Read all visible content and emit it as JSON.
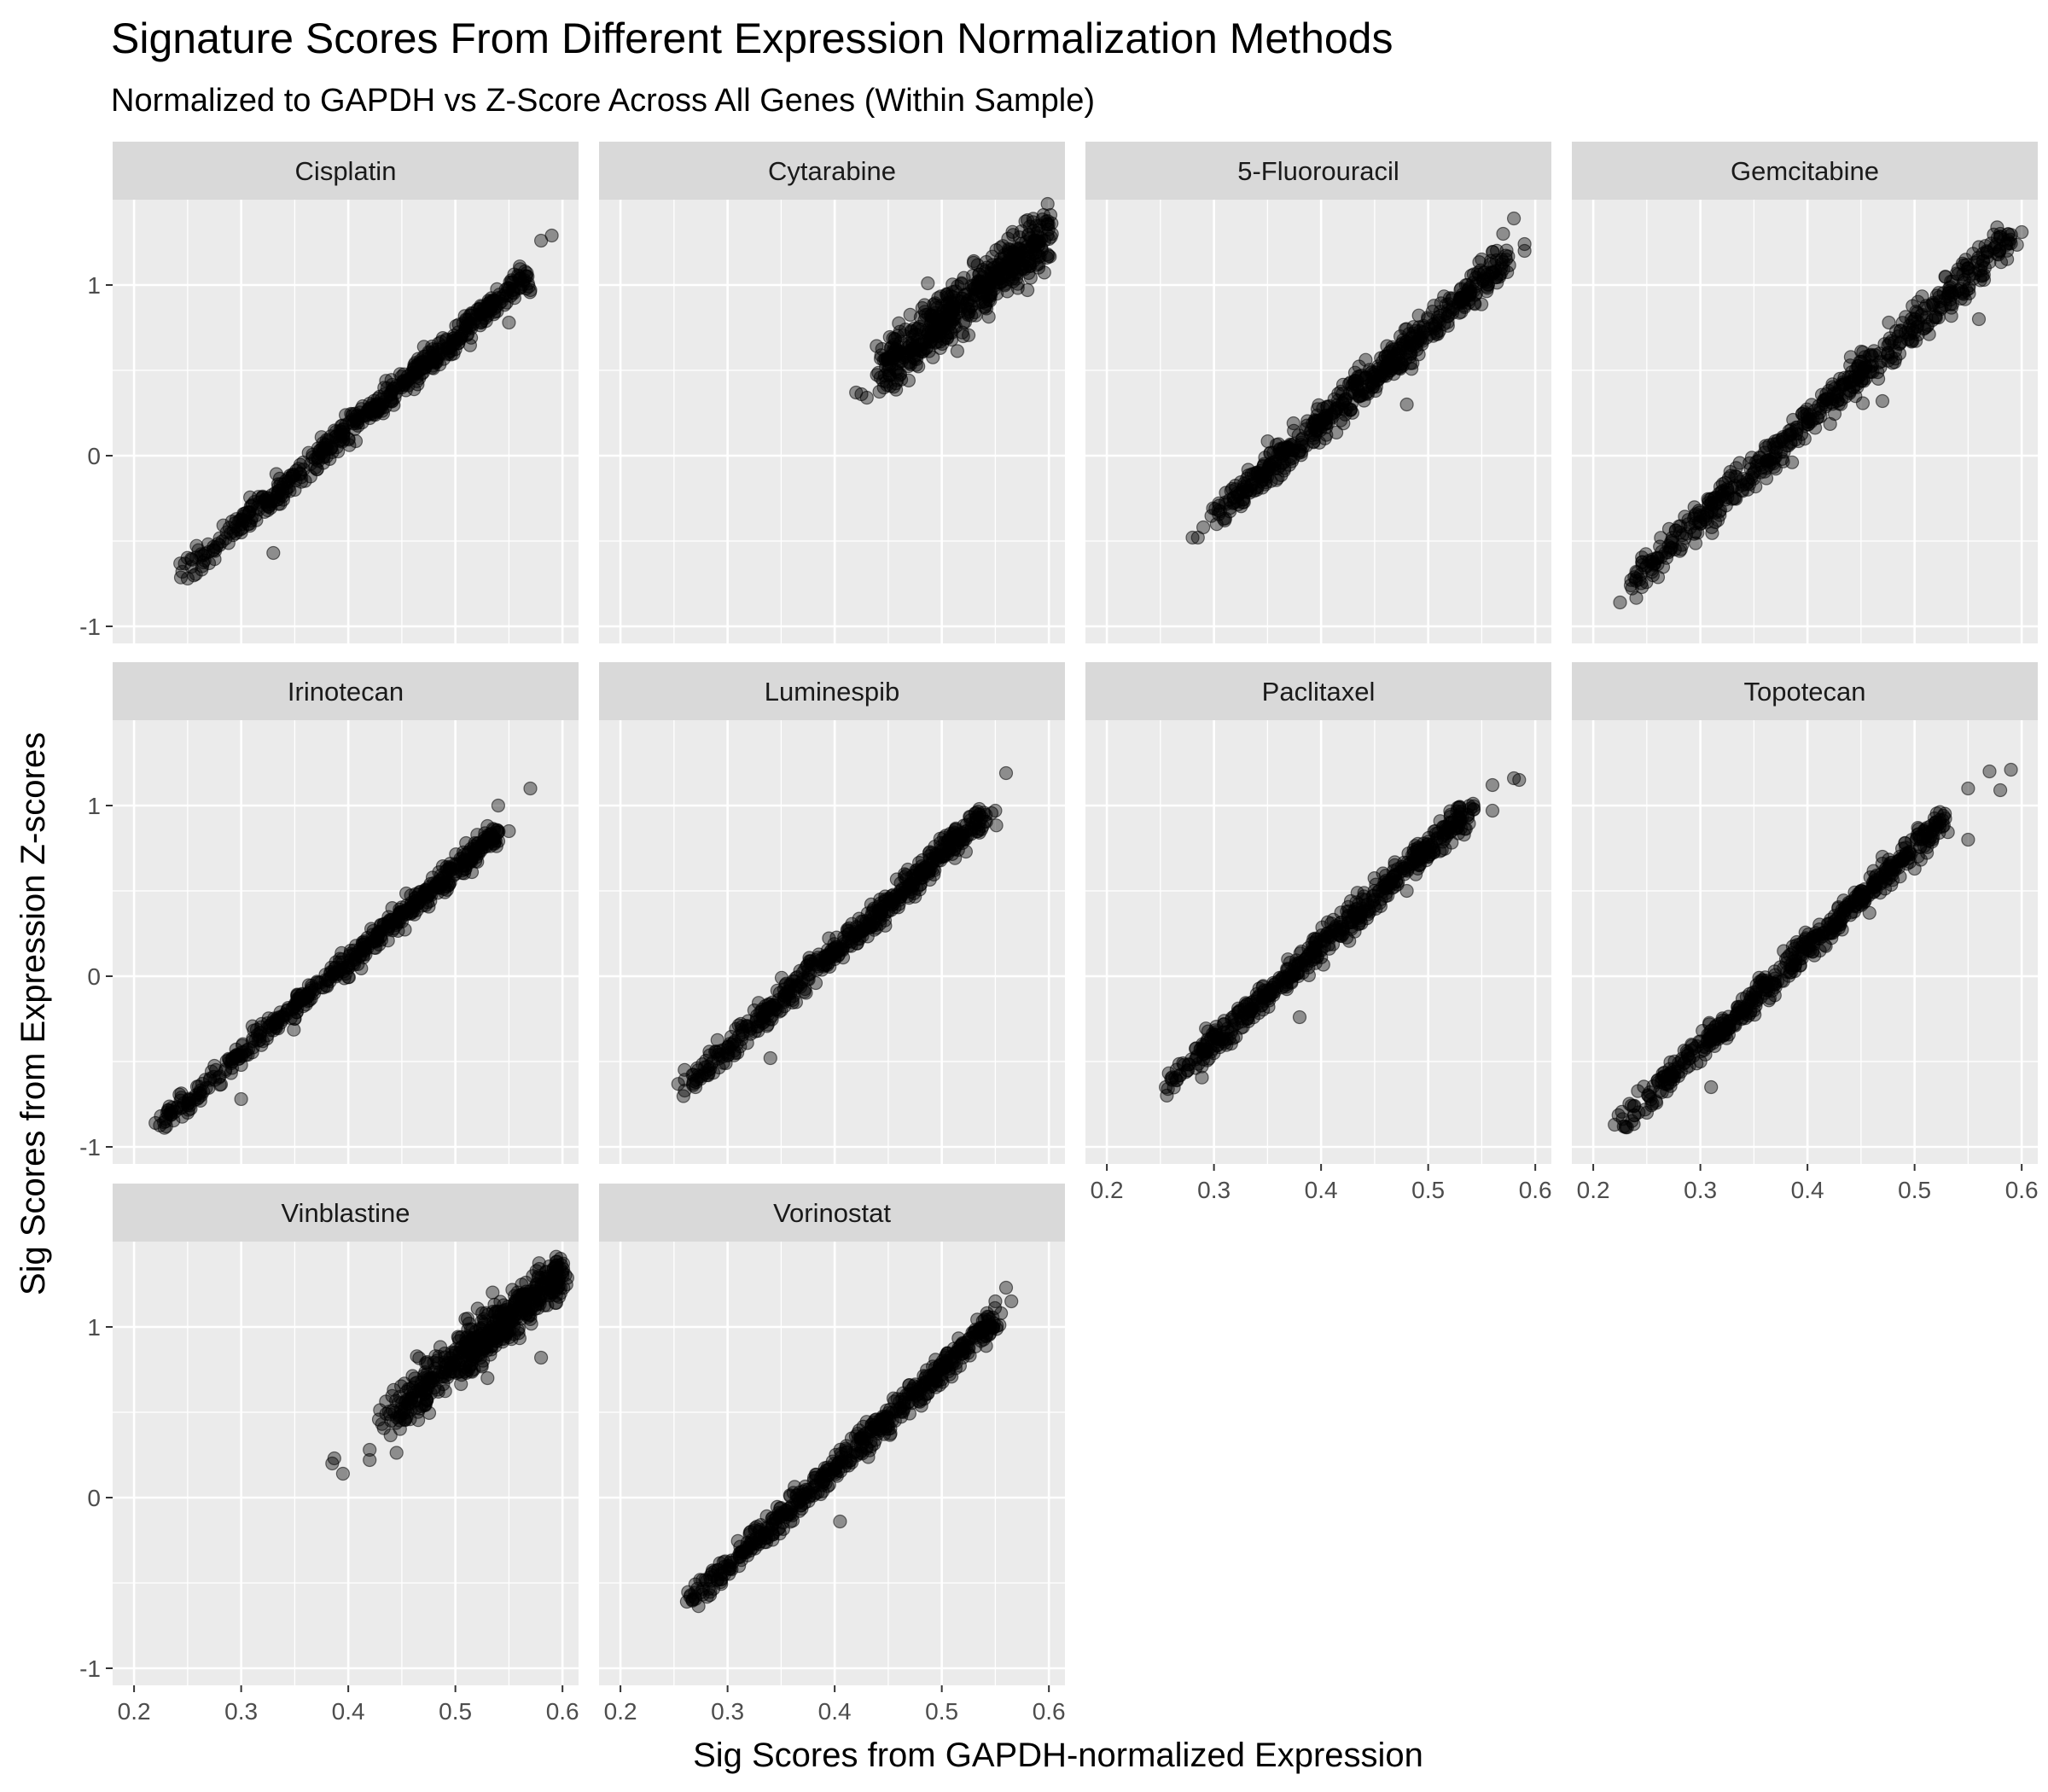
{
  "chart_data": {
    "type": "scatter",
    "title": "Signature Scores From Different Expression Normalization Methods",
    "subtitle": "Normalized to GAPDH vs Z-Score Across All Genes (Within Sample)",
    "xlabel": "Sig Scores from GAPDH-normalized Expression",
    "ylabel": "Sig Scores from Expression Z-scores",
    "xlim": [
      0.18,
      0.615
    ],
    "ylim": [
      -1.1,
      1.5
    ],
    "x_ticks": [
      0.2,
      0.3,
      0.4,
      0.5,
      0.6
    ],
    "x_tick_labels": [
      "0.2",
      "0.3",
      "0.4",
      "0.5",
      "0.6"
    ],
    "y_ticks": [
      -1,
      0,
      1
    ],
    "y_tick_labels": [
      "-1",
      "0",
      "1"
    ],
    "grid": true,
    "facet_layout": {
      "ncol": 4,
      "nrow": 3
    },
    "point_color": "#000000",
    "point_alpha": 0.4,
    "panel_background": "#ebebeb",
    "strip_background": "#d9d9d9",
    "panels": [
      {
        "name": "Cisplatin",
        "trend": {
          "x_range": [
            0.245,
            0.565
          ],
          "y_at_start": -0.7,
          "y_at_end": 1.05,
          "spread": 0.035
        },
        "points": [
          [
            0.245,
            -0.68
          ],
          [
            0.25,
            -0.72
          ],
          [
            0.27,
            -0.63
          ],
          [
            0.3,
            -0.45
          ],
          [
            0.33,
            -0.57
          ],
          [
            0.35,
            -0.2
          ],
          [
            0.4,
            0.1
          ],
          [
            0.42,
            0.22
          ],
          [
            0.45,
            0.4
          ],
          [
            0.5,
            0.68
          ],
          [
            0.53,
            0.85
          ],
          [
            0.55,
            0.98
          ],
          [
            0.55,
            0.78
          ],
          [
            0.565,
            1.08
          ],
          [
            0.57,
            0.97
          ],
          [
            0.58,
            1.26
          ],
          [
            0.59,
            1.29
          ]
        ]
      },
      {
        "name": "Cytarabine",
        "trend": {
          "x_range": [
            0.44,
            0.6
          ],
          "y_at_start": 0.48,
          "y_at_end": 1.3,
          "spread": 0.08
        },
        "points": [
          [
            0.42,
            0.37
          ],
          [
            0.425,
            0.36
          ],
          [
            0.43,
            0.34
          ],
          [
            0.45,
            0.5
          ],
          [
            0.47,
            0.55
          ],
          [
            0.5,
            0.8
          ],
          [
            0.52,
            0.7
          ],
          [
            0.55,
            1.0
          ],
          [
            0.58,
            0.97
          ],
          [
            0.58,
            1.38
          ],
          [
            0.595,
            1.41
          ],
          [
            0.6,
            1.27
          ]
        ]
      },
      {
        "name": "5-Fluorouracil",
        "trend": {
          "x_range": [
            0.3,
            0.575
          ],
          "y_at_start": -0.35,
          "y_at_end": 1.15,
          "spread": 0.05
        },
        "points": [
          [
            0.28,
            -0.48
          ],
          [
            0.285,
            -0.48
          ],
          [
            0.29,
            -0.42
          ],
          [
            0.31,
            -0.38
          ],
          [
            0.34,
            -0.2
          ],
          [
            0.4,
            0.2
          ],
          [
            0.45,
            0.45
          ],
          [
            0.48,
            0.3
          ],
          [
            0.5,
            0.8
          ],
          [
            0.53,
            0.92
          ],
          [
            0.55,
            1.15
          ],
          [
            0.57,
            1.3
          ],
          [
            0.58,
            1.39
          ],
          [
            0.59,
            1.24
          ],
          [
            0.59,
            1.2
          ]
        ]
      },
      {
        "name": "Gemcitabine",
        "trend": {
          "x_range": [
            0.235,
            0.59
          ],
          "y_at_start": -0.75,
          "y_at_end": 1.28,
          "spread": 0.05
        },
        "points": [
          [
            0.225,
            -0.86
          ],
          [
            0.235,
            -0.76
          ],
          [
            0.24,
            -0.72
          ],
          [
            0.3,
            -0.4
          ],
          [
            0.35,
            -0.1
          ],
          [
            0.4,
            0.2
          ],
          [
            0.42,
            0.38
          ],
          [
            0.45,
            0.55
          ],
          [
            0.47,
            0.32
          ],
          [
            0.5,
            0.8
          ],
          [
            0.55,
            1.1
          ],
          [
            0.56,
            0.8
          ],
          [
            0.58,
            1.3
          ],
          [
            0.6,
            1.31
          ]
        ]
      },
      {
        "name": "Irinotecan",
        "trend": {
          "x_range": [
            0.225,
            0.54
          ],
          "y_at_start": -0.86,
          "y_at_end": 0.84,
          "spread": 0.03
        },
        "points": [
          [
            0.22,
            -0.86
          ],
          [
            0.225,
            -0.82
          ],
          [
            0.23,
            -0.88
          ],
          [
            0.25,
            -0.8
          ],
          [
            0.3,
            -0.52
          ],
          [
            0.3,
            -0.72
          ],
          [
            0.35,
            -0.25
          ],
          [
            0.4,
            0.05
          ],
          [
            0.45,
            0.32
          ],
          [
            0.5,
            0.6
          ],
          [
            0.51,
            0.78
          ],
          [
            0.53,
            0.88
          ],
          [
            0.54,
            1.0
          ],
          [
            0.55,
            0.85
          ],
          [
            0.57,
            1.1
          ]
        ]
      },
      {
        "name": "Luminespib",
        "trend": {
          "x_range": [
            0.26,
            0.54
          ],
          "y_at_start": -0.65,
          "y_at_end": 0.94,
          "spread": 0.035
        },
        "points": [
          [
            0.26,
            -0.67
          ],
          [
            0.27,
            -0.65
          ],
          [
            0.3,
            -0.45
          ],
          [
            0.34,
            -0.48
          ],
          [
            0.35,
            -0.2
          ],
          [
            0.4,
            0.1
          ],
          [
            0.45,
            0.38
          ],
          [
            0.5,
            0.7
          ],
          [
            0.52,
            0.8
          ],
          [
            0.535,
            0.98
          ],
          [
            0.55,
            0.97
          ],
          [
            0.56,
            1.19
          ]
        ]
      },
      {
        "name": "Paclitaxel",
        "trend": {
          "x_range": [
            0.26,
            0.54
          ],
          "y_at_start": -0.62,
          "y_at_end": 0.98,
          "spread": 0.04
        },
        "points": [
          [
            0.255,
            -0.65
          ],
          [
            0.26,
            -0.6
          ],
          [
            0.3,
            -0.35
          ],
          [
            0.35,
            -0.1
          ],
          [
            0.38,
            -0.24
          ],
          [
            0.4,
            0.15
          ],
          [
            0.45,
            0.45
          ],
          [
            0.48,
            0.5
          ],
          [
            0.5,
            0.7
          ],
          [
            0.52,
            0.9
          ],
          [
            0.56,
            1.12
          ],
          [
            0.56,
            0.97
          ],
          [
            0.58,
            1.16
          ],
          [
            0.585,
            1.15
          ]
        ]
      },
      {
        "name": "Topotecan",
        "trend": {
          "x_range": [
            0.225,
            0.53
          ],
          "y_at_start": -0.86,
          "y_at_end": 0.93,
          "spread": 0.035
        },
        "points": [
          [
            0.22,
            -0.87
          ],
          [
            0.23,
            -0.88
          ],
          [
            0.25,
            -0.8
          ],
          [
            0.3,
            -0.5
          ],
          [
            0.31,
            -0.65
          ],
          [
            0.35,
            -0.2
          ],
          [
            0.38,
            0.1
          ],
          [
            0.39,
            0.2
          ],
          [
            0.45,
            0.5
          ],
          [
            0.47,
            0.7
          ],
          [
            0.5,
            0.63
          ],
          [
            0.52,
            0.9
          ],
          [
            0.55,
            0.8
          ],
          [
            0.55,
            1.1
          ],
          [
            0.57,
            1.2
          ],
          [
            0.58,
            1.09
          ],
          [
            0.59,
            1.21
          ]
        ]
      },
      {
        "name": "Vinblastine",
        "trend": {
          "x_range": [
            0.43,
            0.6
          ],
          "y_at_start": 0.42,
          "y_at_end": 1.32,
          "spread": 0.07
        },
        "points": [
          [
            0.385,
            0.2
          ],
          [
            0.387,
            0.23
          ],
          [
            0.395,
            0.14
          ],
          [
            0.42,
            0.28
          ],
          [
            0.42,
            0.22
          ],
          [
            0.44,
            0.45
          ],
          [
            0.5,
            0.8
          ],
          [
            0.53,
            0.7
          ],
          [
            0.55,
            1.05
          ],
          [
            0.58,
            0.82
          ],
          [
            0.59,
            1.2
          ],
          [
            0.598,
            1.4
          ],
          [
            0.6,
            1.3
          ]
        ]
      },
      {
        "name": "Vorinostat",
        "trend": {
          "x_range": [
            0.265,
            0.55
          ],
          "y_at_start": -0.6,
          "y_at_end": 1.04,
          "spread": 0.035
        },
        "points": [
          [
            0.262,
            -0.61
          ],
          [
            0.265,
            -0.58
          ],
          [
            0.3,
            -0.4
          ],
          [
            0.35,
            -0.1
          ],
          [
            0.405,
            -0.14
          ],
          [
            0.4,
            0.2
          ],
          [
            0.45,
            0.42
          ],
          [
            0.5,
            0.72
          ],
          [
            0.54,
            1.0
          ],
          [
            0.55,
            1.15
          ],
          [
            0.56,
            1.23
          ],
          [
            0.565,
            1.15
          ]
        ]
      }
    ]
  }
}
